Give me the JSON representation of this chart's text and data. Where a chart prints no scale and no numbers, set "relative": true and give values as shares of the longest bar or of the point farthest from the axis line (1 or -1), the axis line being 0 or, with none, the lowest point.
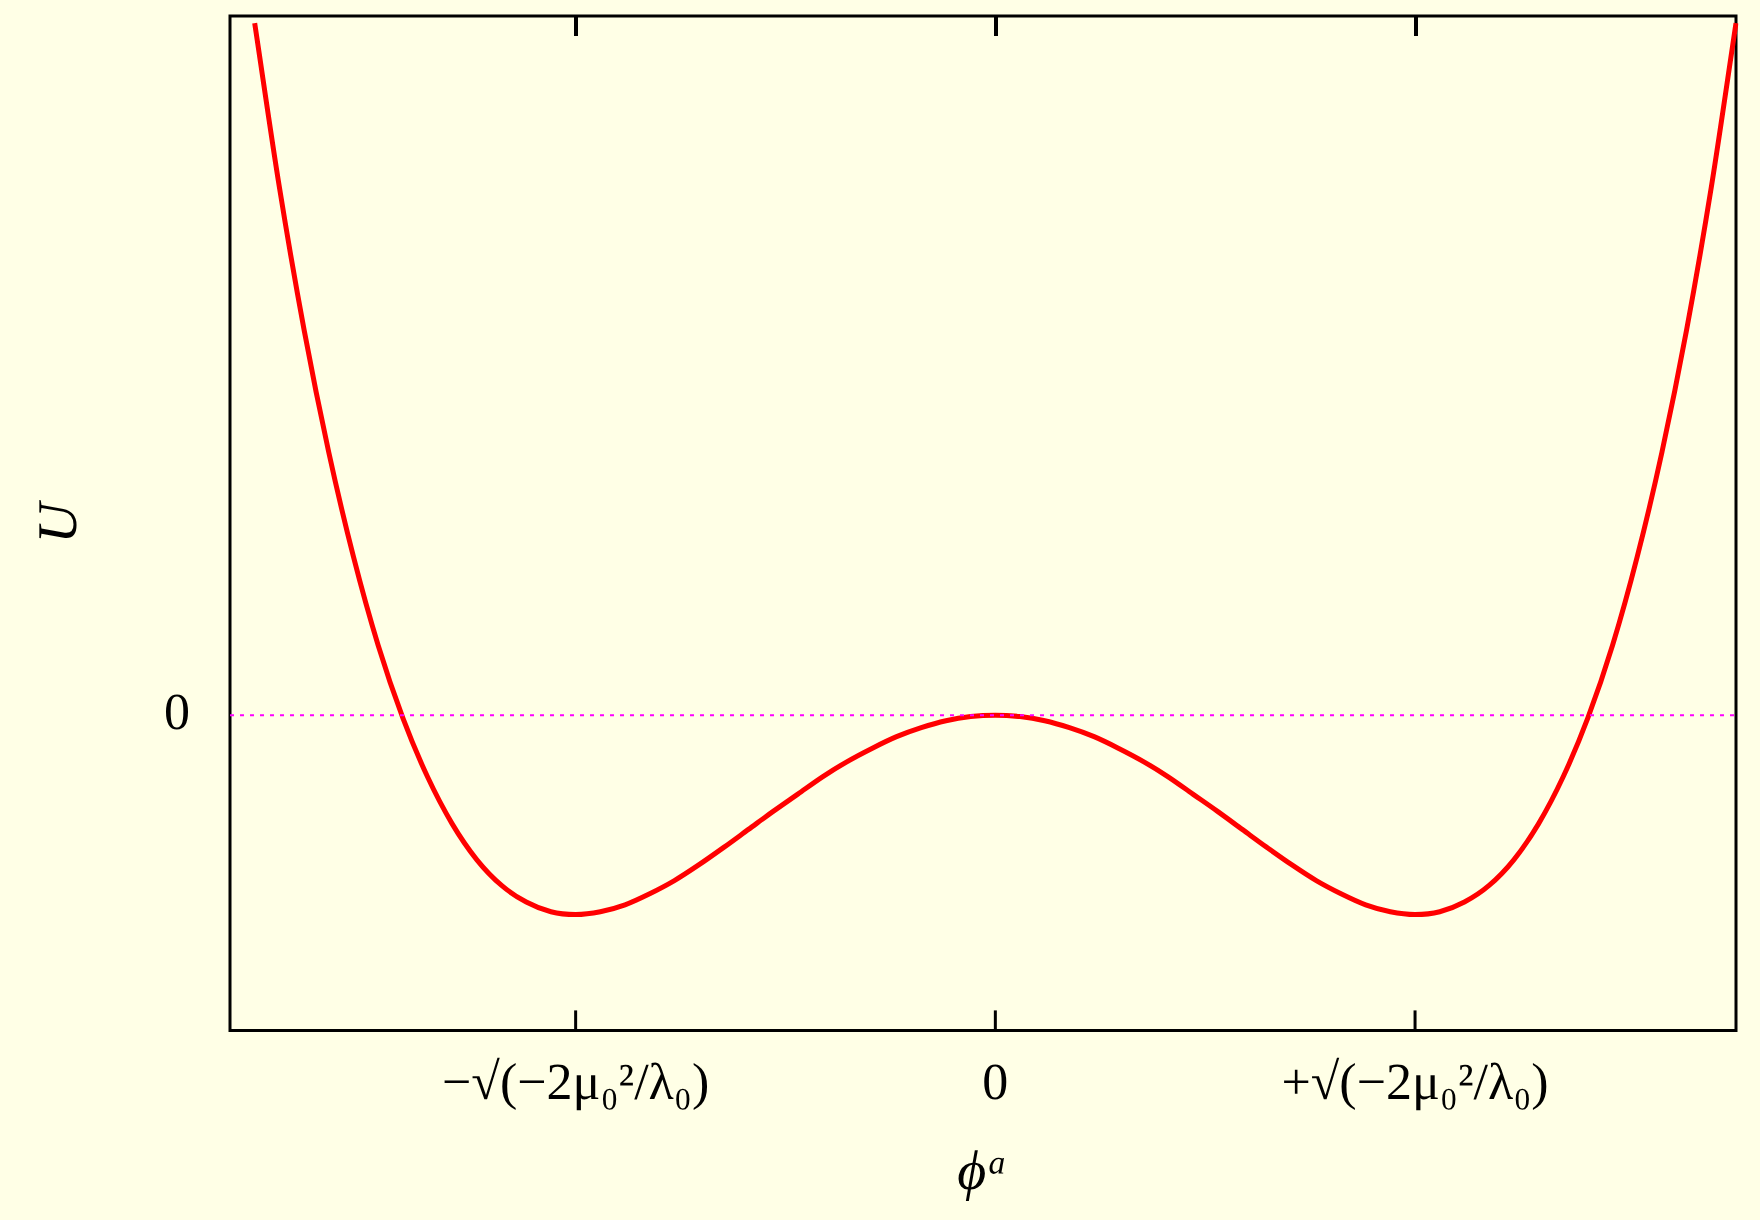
{
  "chart_data": {
    "type": "line",
    "relative": true,
    "xlabel": "ϕᵃ",
    "ylabel": "U",
    "categories": [
      null,
      null,
      null,
      null,
      null,
      null,
      null,
      null,
      null,
      null,
      null,
      null,
      null,
      null,
      "−√(−2μ₀²/λ₀)",
      null,
      null,
      null,
      null,
      null,
      null,
      null,
      null,
      null,
      null,
      null,
      null,
      null,
      null,
      null,
      null,
      "0",
      null,
      null,
      null,
      null,
      null,
      null,
      null,
      null,
      null,
      null,
      null,
      null,
      null,
      null,
      null,
      null,
      "+√(−2μ₀²/λ₀)",
      null,
      null,
      null,
      null,
      null,
      null,
      null,
      null,
      null,
      null,
      null,
      null,
      null
    ],
    "series": [
      {
        "color": "#ff0000",
        "values": [
          null,
          1,
          0.763,
          0.557,
          0.38,
          0.229,
          0.101,
          -0.004,
          -0.089,
          -0.157,
          -0.209,
          -0.246,
          -0.27,
          -0.284,
          -0.288,
          -0.284,
          -0.274,
          -0.258,
          -0.239,
          -0.216,
          -0.191,
          -0.165,
          -0.139,
          -0.114,
          -0.089,
          -0.067,
          -0.048,
          -0.031,
          -0.018,
          -0.008,
          -0.002,
          0,
          -0.002,
          -0.008,
          -0.018,
          -0.031,
          -0.048,
          -0.067,
          -0.089,
          -0.114,
          -0.139,
          -0.165,
          -0.191,
          -0.216,
          -0.239,
          -0.258,
          -0.274,
          -0.284,
          -0.288,
          -0.284,
          -0.27,
          -0.246,
          -0.209,
          -0.157,
          -0.089,
          -0.004,
          0.101,
          0.229,
          0.38,
          0.557,
          0.763,
          1
        ]
      }
    ],
    "ref_lines": [
      {
        "axis": "y",
        "value": 0,
        "label": "0",
        "color": "#ff00ff",
        "line_style": "dotted"
      }
    ],
    "grid": false,
    "legend": false,
    "marker": "none",
    "line_style": "solid"
  }
}
